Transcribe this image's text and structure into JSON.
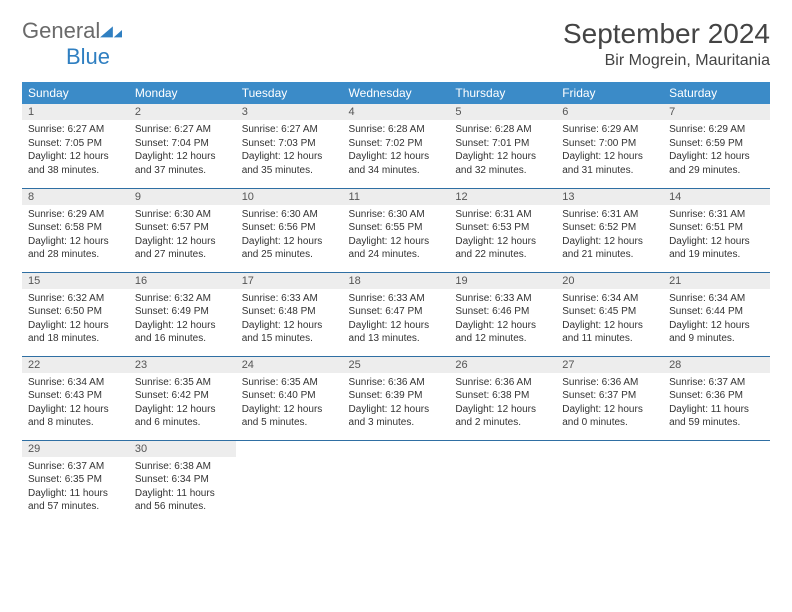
{
  "logo": {
    "text1": "General",
    "text2": "Blue"
  },
  "title": "September 2024",
  "location": "Bir Mogrein, Mauritania",
  "weekdays": [
    "Sunday",
    "Monday",
    "Tuesday",
    "Wednesday",
    "Thursday",
    "Friday",
    "Saturday"
  ],
  "colors": {
    "header_bg": "#3b8bc8",
    "header_text": "#ffffff",
    "row_border": "#2f6fa3",
    "daynum_bg": "#ededed",
    "logo_blue": "#2f7fc1",
    "logo_grey": "#6a6a6a"
  },
  "days": [
    {
      "n": "1",
      "sr": "6:27 AM",
      "ss": "7:05 PM",
      "dl": "12 hours and 38 minutes."
    },
    {
      "n": "2",
      "sr": "6:27 AM",
      "ss": "7:04 PM",
      "dl": "12 hours and 37 minutes."
    },
    {
      "n": "3",
      "sr": "6:27 AM",
      "ss": "7:03 PM",
      "dl": "12 hours and 35 minutes."
    },
    {
      "n": "4",
      "sr": "6:28 AM",
      "ss": "7:02 PM",
      "dl": "12 hours and 34 minutes."
    },
    {
      "n": "5",
      "sr": "6:28 AM",
      "ss": "7:01 PM",
      "dl": "12 hours and 32 minutes."
    },
    {
      "n": "6",
      "sr": "6:29 AM",
      "ss": "7:00 PM",
      "dl": "12 hours and 31 minutes."
    },
    {
      "n": "7",
      "sr": "6:29 AM",
      "ss": "6:59 PM",
      "dl": "12 hours and 29 minutes."
    },
    {
      "n": "8",
      "sr": "6:29 AM",
      "ss": "6:58 PM",
      "dl": "12 hours and 28 minutes."
    },
    {
      "n": "9",
      "sr": "6:30 AM",
      "ss": "6:57 PM",
      "dl": "12 hours and 27 minutes."
    },
    {
      "n": "10",
      "sr": "6:30 AM",
      "ss": "6:56 PM",
      "dl": "12 hours and 25 minutes."
    },
    {
      "n": "11",
      "sr": "6:30 AM",
      "ss": "6:55 PM",
      "dl": "12 hours and 24 minutes."
    },
    {
      "n": "12",
      "sr": "6:31 AM",
      "ss": "6:53 PM",
      "dl": "12 hours and 22 minutes."
    },
    {
      "n": "13",
      "sr": "6:31 AM",
      "ss": "6:52 PM",
      "dl": "12 hours and 21 minutes."
    },
    {
      "n": "14",
      "sr": "6:31 AM",
      "ss": "6:51 PM",
      "dl": "12 hours and 19 minutes."
    },
    {
      "n": "15",
      "sr": "6:32 AM",
      "ss": "6:50 PM",
      "dl": "12 hours and 18 minutes."
    },
    {
      "n": "16",
      "sr": "6:32 AM",
      "ss": "6:49 PM",
      "dl": "12 hours and 16 minutes."
    },
    {
      "n": "17",
      "sr": "6:33 AM",
      "ss": "6:48 PM",
      "dl": "12 hours and 15 minutes."
    },
    {
      "n": "18",
      "sr": "6:33 AM",
      "ss": "6:47 PM",
      "dl": "12 hours and 13 minutes."
    },
    {
      "n": "19",
      "sr": "6:33 AM",
      "ss": "6:46 PM",
      "dl": "12 hours and 12 minutes."
    },
    {
      "n": "20",
      "sr": "6:34 AM",
      "ss": "6:45 PM",
      "dl": "12 hours and 11 minutes."
    },
    {
      "n": "21",
      "sr": "6:34 AM",
      "ss": "6:44 PM",
      "dl": "12 hours and 9 minutes."
    },
    {
      "n": "22",
      "sr": "6:34 AM",
      "ss": "6:43 PM",
      "dl": "12 hours and 8 minutes."
    },
    {
      "n": "23",
      "sr": "6:35 AM",
      "ss": "6:42 PM",
      "dl": "12 hours and 6 minutes."
    },
    {
      "n": "24",
      "sr": "6:35 AM",
      "ss": "6:40 PM",
      "dl": "12 hours and 5 minutes."
    },
    {
      "n": "25",
      "sr": "6:36 AM",
      "ss": "6:39 PM",
      "dl": "12 hours and 3 minutes."
    },
    {
      "n": "26",
      "sr": "6:36 AM",
      "ss": "6:38 PM",
      "dl": "12 hours and 2 minutes."
    },
    {
      "n": "27",
      "sr": "6:36 AM",
      "ss": "6:37 PM",
      "dl": "12 hours and 0 minutes."
    },
    {
      "n": "28",
      "sr": "6:37 AM",
      "ss": "6:36 PM",
      "dl": "11 hours and 59 minutes."
    },
    {
      "n": "29",
      "sr": "6:37 AM",
      "ss": "6:35 PM",
      "dl": "11 hours and 57 minutes."
    },
    {
      "n": "30",
      "sr": "6:38 AM",
      "ss": "6:34 PM",
      "dl": "11 hours and 56 minutes."
    }
  ],
  "labels": {
    "sunrise": "Sunrise:",
    "sunset": "Sunset:",
    "daylight": "Daylight:"
  }
}
